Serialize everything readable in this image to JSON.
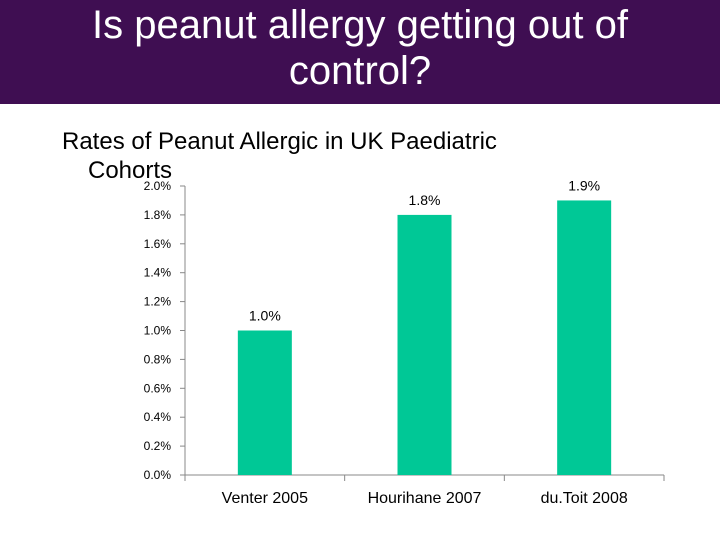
{
  "slide": {
    "title": "Is peanut allergy getting out of control?",
    "subtitle_line1": "Rates of Peanut Allergic in UK Paediatric",
    "subtitle_line2": "Cohorts"
  },
  "colors": {
    "title_bg": "#3f0e52",
    "bar": "#00c896"
  },
  "chart_data": {
    "type": "bar",
    "categories": [
      "Venter 2005",
      "Hourihane 2007",
      "du.Toit 2008"
    ],
    "values": [
      1.0,
      1.8,
      1.9
    ],
    "data_labels": [
      "1.0%",
      "1.8%",
      "1.9%"
    ],
    "ylim": [
      0,
      2.0
    ],
    "yticks": [
      0.0,
      0.2,
      0.4,
      0.6,
      0.8,
      1.0,
      1.2,
      1.4,
      1.6,
      1.8,
      2.0
    ],
    "ytick_labels": [
      "0.0%",
      "0.2%",
      "0.4%",
      "0.6%",
      "0.8%",
      "1.0%",
      "1.2%",
      "1.4%",
      "1.6%",
      "1.8%",
      "2.0%"
    ],
    "grid": false,
    "legend": "none"
  }
}
